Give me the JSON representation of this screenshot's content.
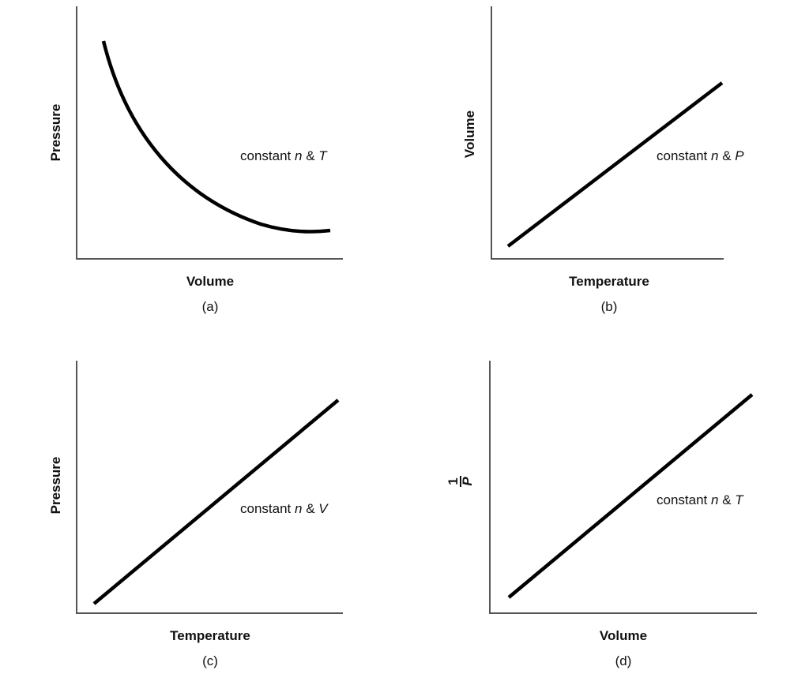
{
  "chart_data": [
    {
      "type": "line",
      "panel": "(a)",
      "xlabel": "Volume",
      "ylabel": "Pressure",
      "relationship": "inverse",
      "ticks": false,
      "grid": false,
      "annotation": {
        "prefix": "constant ",
        "var1": "n",
        "mid": " & ",
        "var2": "T"
      }
    },
    {
      "type": "line",
      "panel": "(b)",
      "xlabel": "Temperature",
      "ylabel": "Volume",
      "relationship": "linear-increasing",
      "ticks": false,
      "grid": false,
      "annotation": {
        "prefix": "constant ",
        "var1": "n",
        "mid": " & ",
        "var2": "P"
      }
    },
    {
      "type": "line",
      "panel": "(c)",
      "xlabel": "Temperature",
      "ylabel": "Pressure",
      "relationship": "linear-increasing",
      "ticks": false,
      "grid": false,
      "annotation": {
        "prefix": "constant ",
        "var1": "n",
        "mid": " & ",
        "var2": "V"
      }
    },
    {
      "type": "line",
      "panel": "(d)",
      "xlabel": "Volume",
      "ylabel": {
        "numerator": "1",
        "denominator": "P"
      },
      "relationship": "linear-increasing",
      "ticks": false,
      "grid": false,
      "annotation": {
        "prefix": "constant ",
        "var1": "n",
        "mid": " & ",
        "var2": "T"
      }
    }
  ],
  "colors": {
    "axis": "#555555",
    "curve": "#000000"
  }
}
